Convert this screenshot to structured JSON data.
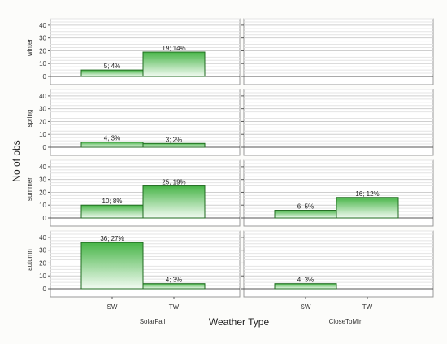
{
  "chart_data": {
    "type": "bar",
    "ylabel": "No of obs",
    "xlabel": "Weather Type",
    "ylim": [
      0,
      45
    ],
    "yticks": [
      0,
      10,
      20,
      30,
      40
    ],
    "grid": true,
    "row_labels": [
      "winter",
      "spring",
      "summer",
      "autumn"
    ],
    "column_labels": [
      "SolarFall",
      "CloseToMin"
    ],
    "categories": [
      "SW",
      "TW"
    ],
    "bar_color": "#4cb84c",
    "panels": [
      {
        "row": "winter",
        "column": "SolarFall",
        "bars": [
          {
            "category": "SW",
            "value": 5,
            "label": "5; 4%"
          },
          {
            "category": "TW",
            "value": 19,
            "label": "19; 14%"
          }
        ]
      },
      {
        "row": "winter",
        "column": "CloseToMin",
        "bars": []
      },
      {
        "row": "spring",
        "column": "SolarFall",
        "bars": [
          {
            "category": "SW",
            "value": 4,
            "label": "4; 3%"
          },
          {
            "category": "TW",
            "value": 3,
            "label": "3; 2%"
          }
        ]
      },
      {
        "row": "spring",
        "column": "CloseToMin",
        "bars": []
      },
      {
        "row": "summer",
        "column": "SolarFall",
        "bars": [
          {
            "category": "SW",
            "value": 10,
            "label": "10; 8%"
          },
          {
            "category": "TW",
            "value": 25,
            "label": "25; 19%"
          }
        ]
      },
      {
        "row": "summer",
        "column": "CloseToMin",
        "bars": [
          {
            "category": "SW",
            "value": 6,
            "label": "6; 5%"
          },
          {
            "category": "TW",
            "value": 16,
            "label": "16; 12%"
          }
        ]
      },
      {
        "row": "autumn",
        "column": "SolarFall",
        "bars": [
          {
            "category": "SW",
            "value": 36,
            "label": "36; 27%"
          },
          {
            "category": "TW",
            "value": 4,
            "label": "4; 3%"
          }
        ]
      },
      {
        "row": "autumn",
        "column": "CloseToMin",
        "bars": [
          {
            "category": "SW",
            "value": 4,
            "label": "4; 3%"
          }
        ]
      }
    ]
  }
}
